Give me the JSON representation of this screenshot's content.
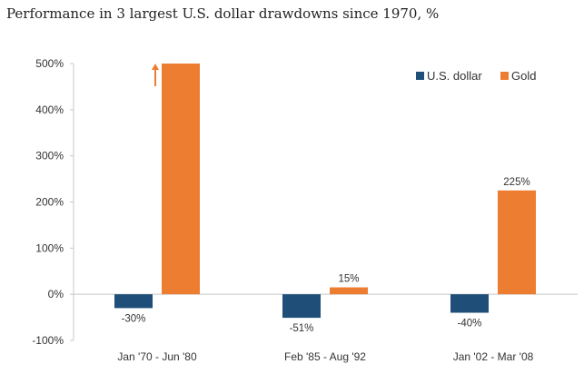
{
  "chart_data": {
    "type": "bar",
    "title": "Performance in 3 largest U.S. dollar drawdowns since 1970, %",
    "categories": [
      "Jan '70 - Jun '80",
      "Feb '85 - Aug '92",
      "Jan '02 - Mar '08"
    ],
    "series": [
      {
        "name": "U.S. dollar",
        "color": "#1f4e79",
        "values": [
          -30,
          -51,
          -40
        ],
        "labels": [
          "-30%",
          "-51%",
          "-40%"
        ]
      },
      {
        "name": "Gold",
        "color": "#ed7d31",
        "values": [
          500,
          15,
          225
        ],
        "labels": [
          "",
          "15%",
          "225%"
        ]
      }
    ],
    "ylim": [
      -100,
      500
    ],
    "yticks": [
      500,
      400,
      300,
      200,
      100,
      0,
      -100
    ],
    "ytick_labels": [
      "500%",
      "400%",
      "300%",
      "200%",
      "100%",
      "0%",
      "-100%"
    ],
    "legend_position": "top-right",
    "annotations": [
      {
        "type": "up-arrow",
        "series": "Gold",
        "category": "Jan '70 - Jun '80",
        "meaning": "value exceeds axis maximum"
      }
    ],
    "xlabel": "",
    "ylabel": ""
  }
}
